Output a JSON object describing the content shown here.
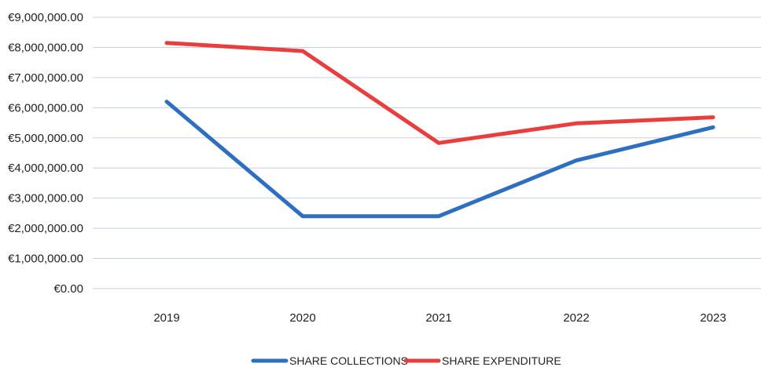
{
  "chart_data": {
    "type": "line",
    "categories": [
      "2019",
      "2020",
      "2021",
      "2022",
      "2023"
    ],
    "series": [
      {
        "name": "SHARE COLLECTIONS",
        "color": "#2e6fbf",
        "values": [
          6200000,
          2400000,
          2400000,
          4250000,
          5350000
        ]
      },
      {
        "name": "SHARE EXPENDITURE",
        "color": "#e83e3e",
        "values": [
          8150000,
          7880000,
          4830000,
          5480000,
          5680000
        ]
      }
    ],
    "y_ticks": [
      "€0.00",
      "€1,000,000.00",
      "€2,000,000.00",
      "€3,000,000.00",
      "€4,000,000.00",
      "€5,000,000.00",
      "€6,000,000.00",
      "€7,000,000.00",
      "€8,000,000.00",
      "€9,000,000.00"
    ],
    "ylim": [
      0,
      9000000
    ],
    "grid": true,
    "legend_position": "bottom-center",
    "gridline_color": "#c9cde6"
  }
}
